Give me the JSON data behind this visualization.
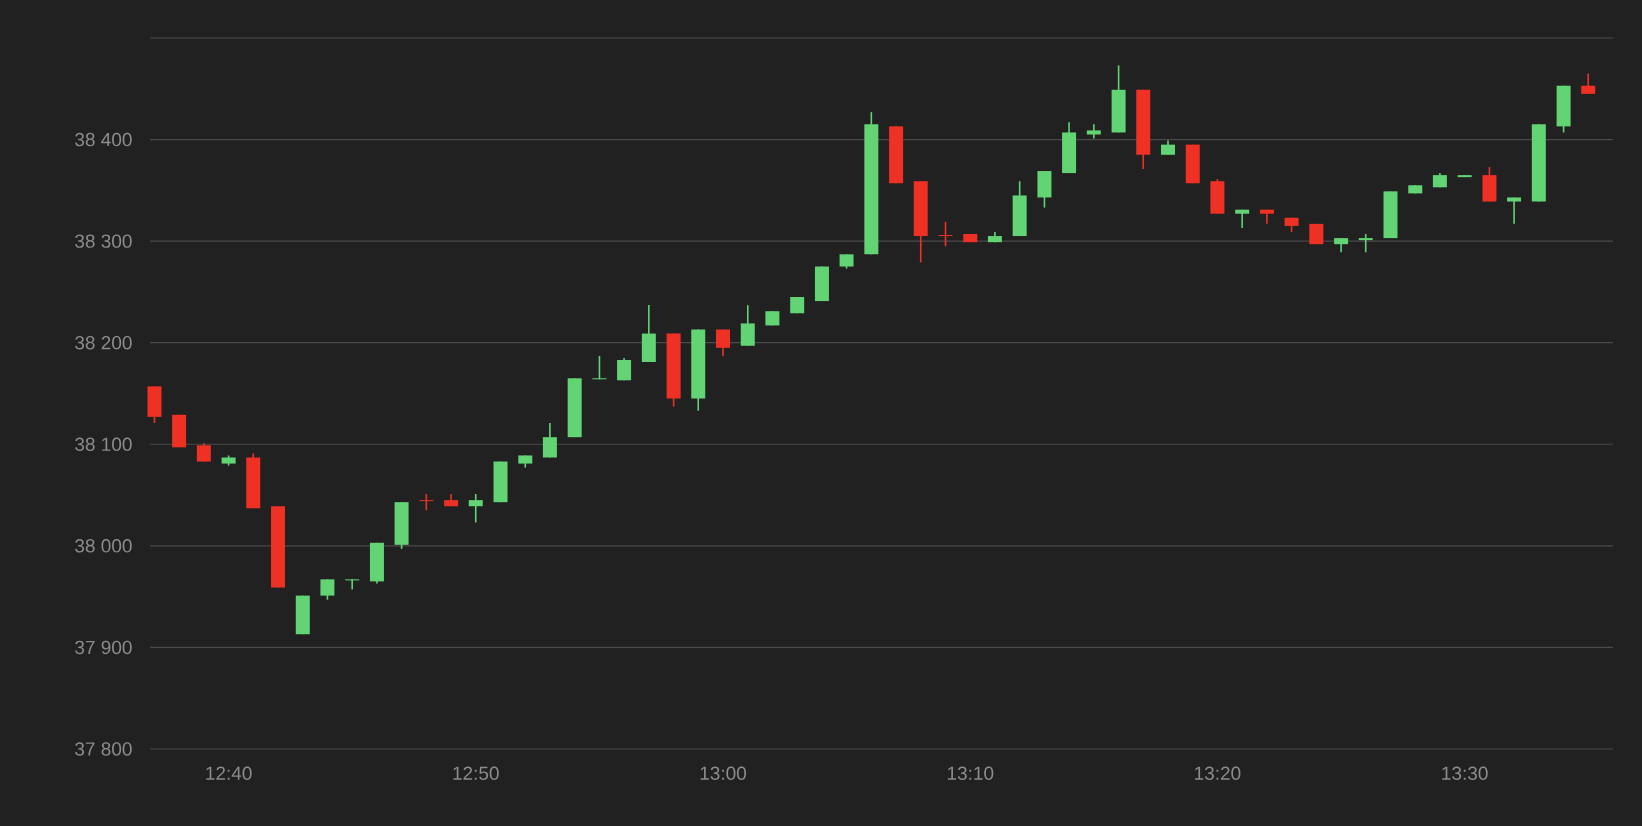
{
  "chart_data": {
    "type": "candlestick",
    "x": [
      12.6167,
      12.6333,
      12.65,
      12.6667,
      12.6833,
      12.7,
      12.7167,
      12.7333,
      12.75,
      12.7667,
      12.7833,
      12.8,
      12.8167,
      12.8333,
      12.85,
      12.8667,
      12.8833,
      12.9,
      12.9167,
      12.9333,
      12.95,
      12.9667,
      12.9833,
      13.0,
      13.0167,
      13.0333,
      13.05,
      13.0667,
      13.0833,
      13.1,
      13.1167,
      13.1333,
      13.15,
      13.1667,
      13.1833,
      13.2,
      13.2167,
      13.2333,
      13.25,
      13.2667,
      13.2833,
      13.3,
      13.3167,
      13.3333,
      13.35,
      13.3667,
      13.3833,
      13.4,
      13.4167,
      13.4333,
      13.45,
      13.4667,
      13.4833,
      13.5,
      13.5167,
      13.5333,
      13.55,
      13.5667,
      13.5833
    ],
    "ohlc": [
      [
        38157,
        38157,
        38121,
        38127
      ],
      [
        38129,
        38129,
        38097,
        38097
      ],
      [
        38099,
        38101,
        38083,
        38083
      ],
      [
        38081,
        38089,
        38079,
        38087
      ],
      [
        38087,
        38091,
        38037,
        38037
      ],
      [
        38039,
        38039,
        37959,
        37959
      ],
      [
        37913,
        37951,
        37913,
        37951
      ],
      [
        37951,
        37967,
        37947,
        37967
      ],
      [
        37966,
        37967,
        37957,
        37967
      ],
      [
        37965,
        38003,
        37963,
        38003
      ],
      [
        38001,
        38043,
        37997,
        38043
      ],
      [
        38045,
        38051,
        38035,
        38044
      ],
      [
        38045,
        38051,
        38039,
        38039
      ],
      [
        38039,
        38051,
        38023,
        38045
      ],
      [
        38043,
        38083,
        38043,
        38083
      ],
      [
        38081,
        38089,
        38077,
        38089
      ],
      [
        38087,
        38121,
        38087,
        38107
      ],
      [
        38107,
        38165,
        38107,
        38165
      ],
      [
        38164,
        38187,
        38164,
        38165
      ],
      [
        38163,
        38185,
        38163,
        38183
      ],
      [
        38181,
        38237,
        38181,
        38209
      ],
      [
        38209,
        38209,
        38137,
        38145
      ],
      [
        38145,
        38213,
        38133,
        38213
      ],
      [
        38213,
        38213,
        38187,
        38195
      ],
      [
        38197,
        38237,
        38197,
        38219
      ],
      [
        38217,
        38231,
        38217,
        38231
      ],
      [
        38229,
        38245,
        38229,
        38245
      ],
      [
        38241,
        38275,
        38241,
        38275
      ],
      [
        38275,
        38287,
        38273,
        38287
      ],
      [
        38287,
        38427,
        38287,
        38415
      ],
      [
        38413,
        38413,
        38357,
        38357
      ],
      [
        38359,
        38359,
        38279,
        38305
      ],
      [
        38306,
        38319,
        38295,
        38305
      ],
      [
        38307,
        38307,
        38299,
        38299
      ],
      [
        38299,
        38309,
        38299,
        38305
      ],
      [
        38305,
        38359,
        38305,
        38345
      ],
      [
        38343,
        38369,
        38333,
        38369
      ],
      [
        38367,
        38417,
        38367,
        38407
      ],
      [
        38405,
        38415,
        38401,
        38409
      ],
      [
        38407,
        38473,
        38407,
        38449
      ],
      [
        38449,
        38449,
        38371,
        38385
      ],
      [
        38385,
        38399,
        38385,
        38395
      ],
      [
        38395,
        38395,
        38357,
        38357
      ],
      [
        38359,
        38361,
        38327,
        38327
      ],
      [
        38327,
        38331,
        38313,
        38331
      ],
      [
        38331,
        38331,
        38317,
        38327
      ],
      [
        38323,
        38323,
        38309,
        38315
      ],
      [
        38317,
        38317,
        38297,
        38297
      ],
      [
        38297,
        38303,
        38289,
        38303
      ],
      [
        38301,
        38307,
        38289,
        38303
      ],
      [
        38303,
        38349,
        38303,
        38349
      ],
      [
        38347,
        38355,
        38347,
        38355
      ],
      [
        38353,
        38367,
        38353,
        38365
      ],
      [
        38363,
        38365,
        38363,
        38365
      ],
      [
        38365,
        38373,
        38339,
        38339
      ],
      [
        38339,
        38343,
        38317,
        38343
      ],
      [
        38339,
        38415,
        38339,
        38415
      ],
      [
        38413,
        38453,
        38407,
        38453
      ],
      [
        38453,
        38465,
        38445,
        38445
      ]
    ],
    "colors": [
      "#ee3124",
      "#ee3124",
      "#ee3124",
      "#62d474",
      "#ee3124",
      "#ee3124",
      "#62d474",
      "#62d474",
      "#62d474",
      "#62d474",
      "#62d474",
      "#ee3124",
      "#ee3124",
      "#62d474",
      "#62d474",
      "#62d474",
      "#62d474",
      "#62d474",
      "#62d474",
      "#62d474",
      "#62d474",
      "#ee3124",
      "#62d474",
      "#ee3124",
      "#62d474",
      "#62d474",
      "#62d474",
      "#62d474",
      "#62d474",
      "#62d474",
      "#ee3124",
      "#ee3124",
      "#ee3124",
      "#ee3124",
      "#62d474",
      "#62d474",
      "#62d474",
      "#62d474",
      "#62d474",
      "#62d474",
      "#ee3124",
      "#62d474",
      "#ee3124",
      "#ee3124",
      "#62d474",
      "#ee3124",
      "#ee3124",
      "#ee3124",
      "#62d474",
      "#62d474",
      "#62d474",
      "#62d474",
      "#62d474",
      "#62d474",
      "#ee3124",
      "#62d474",
      "#62d474",
      "#62d474",
      "#ee3124"
    ],
    "xlim": [
      12.6137,
      13.6
    ],
    "ylim": [
      37800,
      38500
    ],
    "xticks": [
      {
        "value": 12.6667,
        "label": "12:40"
      },
      {
        "value": 12.8333,
        "label": "12:50"
      },
      {
        "value": 13.0,
        "label": "13:00"
      },
      {
        "value": 13.1667,
        "label": "13:10"
      },
      {
        "value": 13.3333,
        "label": "13:20"
      },
      {
        "value": 13.5,
        "label": "13:30"
      }
    ],
    "yticks": [
      {
        "value": 37800,
        "label": "37 800"
      },
      {
        "value": 37900,
        "label": "37 900"
      },
      {
        "value": 38000,
        "label": "38 000"
      },
      {
        "value": 38100,
        "label": "38 100"
      },
      {
        "value": 38200,
        "label": "38 200"
      },
      {
        "value": 38300,
        "label": "38 300"
      },
      {
        "value": 38400,
        "label": "38 400"
      },
      {
        "value": 38500,
        "label": null
      }
    ],
    "grid": "y"
  }
}
